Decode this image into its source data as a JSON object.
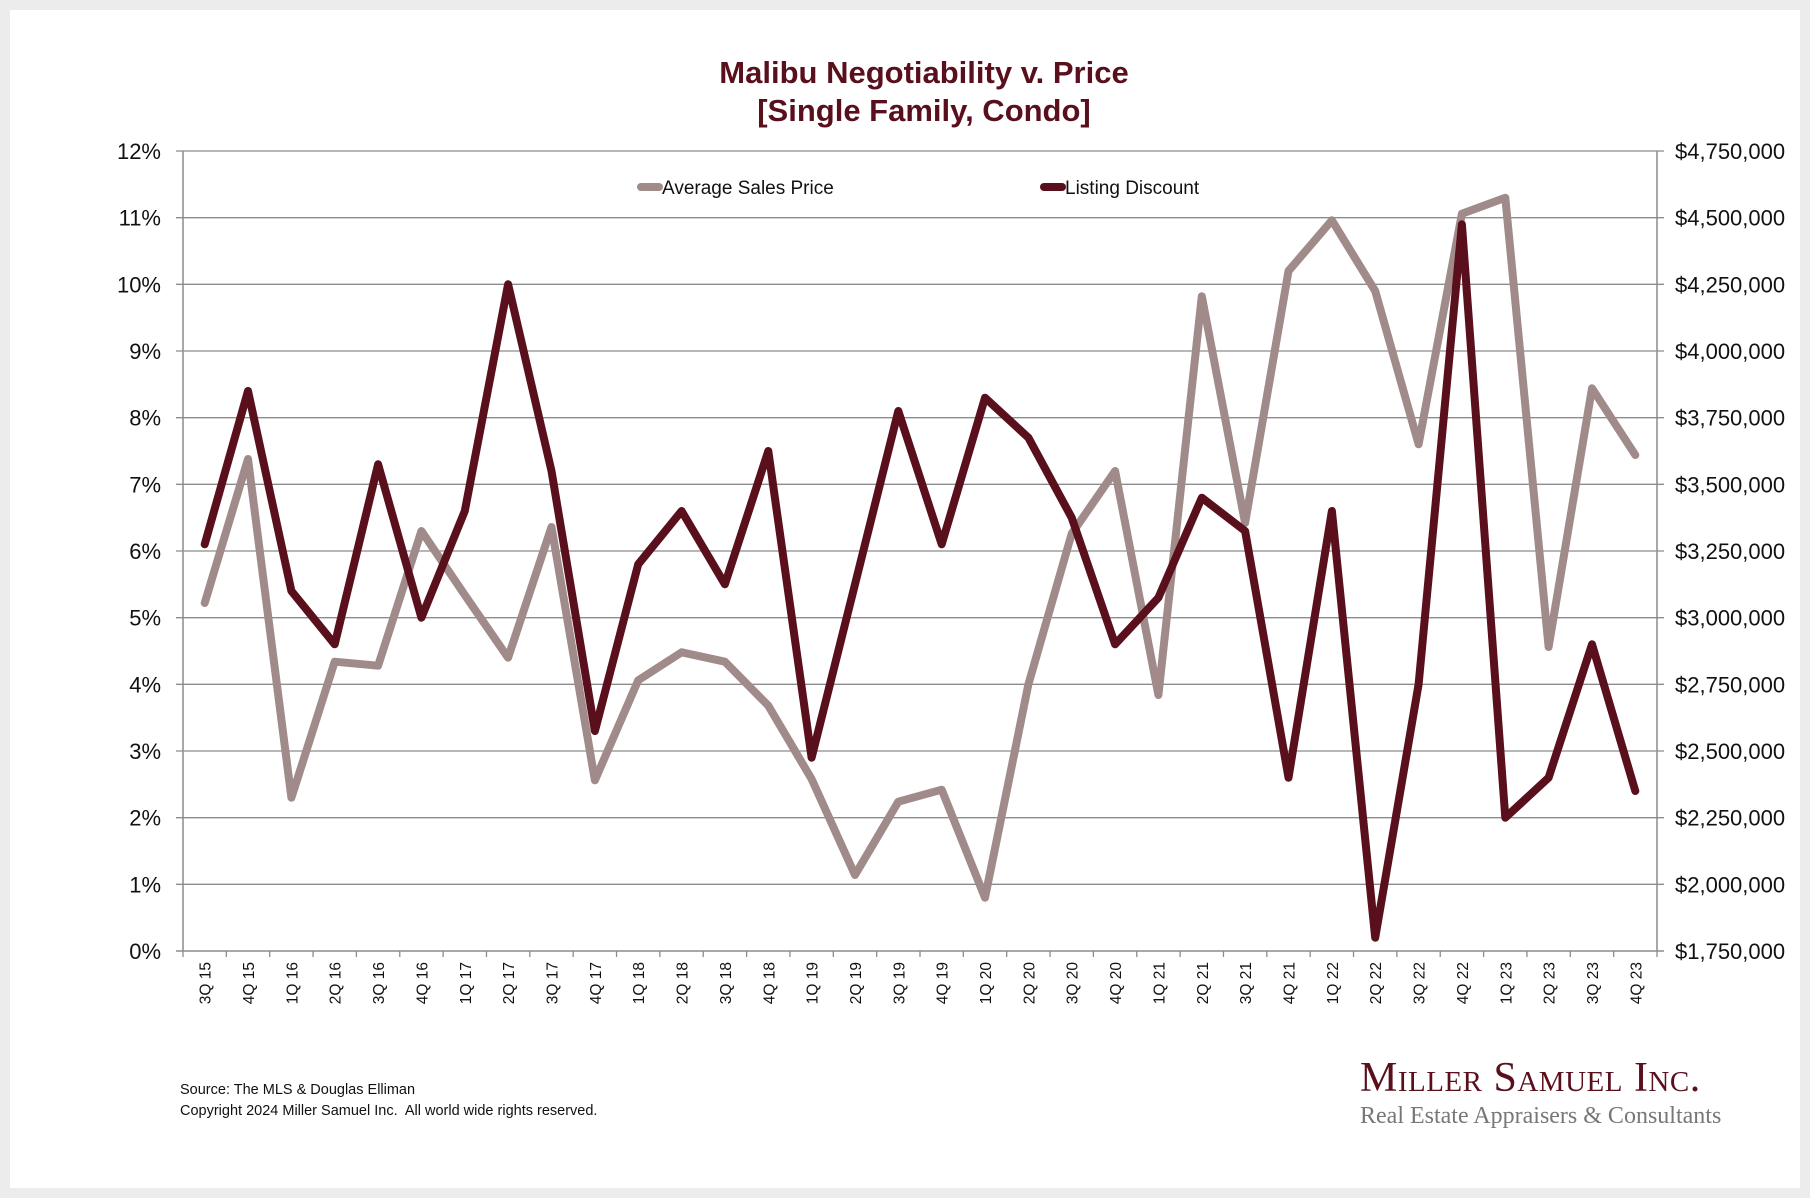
{
  "chart_data": {
    "type": "line",
    "title": "Malibu Negotiability v. Price",
    "subtitle": "[Single Family, Condo]",
    "categories": [
      "3Q 15",
      "4Q 15",
      "1Q 16",
      "2Q 16",
      "3Q 16",
      "4Q 16",
      "1Q 17",
      "2Q 17",
      "3Q 17",
      "4Q 17",
      "1Q 18",
      "2Q 18",
      "3Q 18",
      "4Q 18",
      "1Q 19",
      "2Q 19",
      "3Q 19",
      "4Q 19",
      "1Q 20",
      "2Q 20",
      "3Q 20",
      "4Q 20",
      "1Q 21",
      "2Q 21",
      "3Q 21",
      "4Q 21",
      "1Q 22",
      "2Q 22",
      "3Q 22",
      "4Q 22",
      "1Q 23",
      "2Q 23",
      "3Q 23",
      "4Q 23"
    ],
    "series": [
      {
        "name": "Average Sales Price",
        "axis": "right",
        "color": "#a08b8a",
        "values": [
          3055000,
          3595000,
          2325000,
          2835000,
          2820000,
          3325000,
          3085000,
          2850000,
          3340000,
          2390000,
          2765000,
          2870000,
          2835000,
          2670000,
          2395000,
          2035000,
          2310000,
          2355000,
          1950000,
          2750000,
          3315000,
          3550000,
          2710000,
          4205000,
          3355000,
          4300000,
          4490000,
          4225000,
          3650000,
          4515000,
          4575000,
          2890000,
          3860000,
          3610000
        ]
      },
      {
        "name": "Listing Discount",
        "axis": "left",
        "color": "#5a0f1d",
        "values": [
          6.1,
          8.4,
          5.4,
          4.6,
          7.3,
          5.0,
          6.6,
          10.0,
          7.2,
          3.3,
          5.8,
          6.6,
          5.5,
          7.5,
          2.9,
          5.5,
          8.1,
          6.1,
          8.3,
          7.7,
          6.5,
          4.6,
          5.3,
          6.8,
          6.3,
          2.6,
          6.6,
          0.2,
          4.0,
          10.9,
          2.0,
          2.6,
          4.6,
          2.4
        ]
      }
    ],
    "left_axis": {
      "min": 0,
      "max": 12,
      "step": 1,
      "tick_labels": [
        "0%",
        "1%",
        "2%",
        "3%",
        "4%",
        "5%",
        "6%",
        "7%",
        "8%",
        "9%",
        "10%",
        "11%",
        "12%"
      ]
    },
    "right_axis": {
      "min": 1750000,
      "max": 4750000,
      "step": 250000,
      "tick_labels": [
        "$1,750,000",
        "$2,000,000",
        "$2,250,000",
        "$2,500,000",
        "$2,750,000",
        "$3,000,000",
        "$3,250,000",
        "$3,500,000",
        "$3,750,000",
        "$4,000,000",
        "$4,250,000",
        "$4,500,000",
        "$4,750,000"
      ]
    },
    "xlabel": "",
    "ylabel_left": "",
    "ylabel_right": "",
    "grid": true,
    "legend_position": "top-center"
  },
  "footer": {
    "source": "Source: The MLS & Douglas Elliman",
    "copyright": "Copyright 2024 Miller Samuel Inc.  All world wide rights reserved."
  },
  "logo": {
    "name": "Miller Samuel Inc.",
    "tagline": "Real Estate Appraisers & Consultants"
  }
}
